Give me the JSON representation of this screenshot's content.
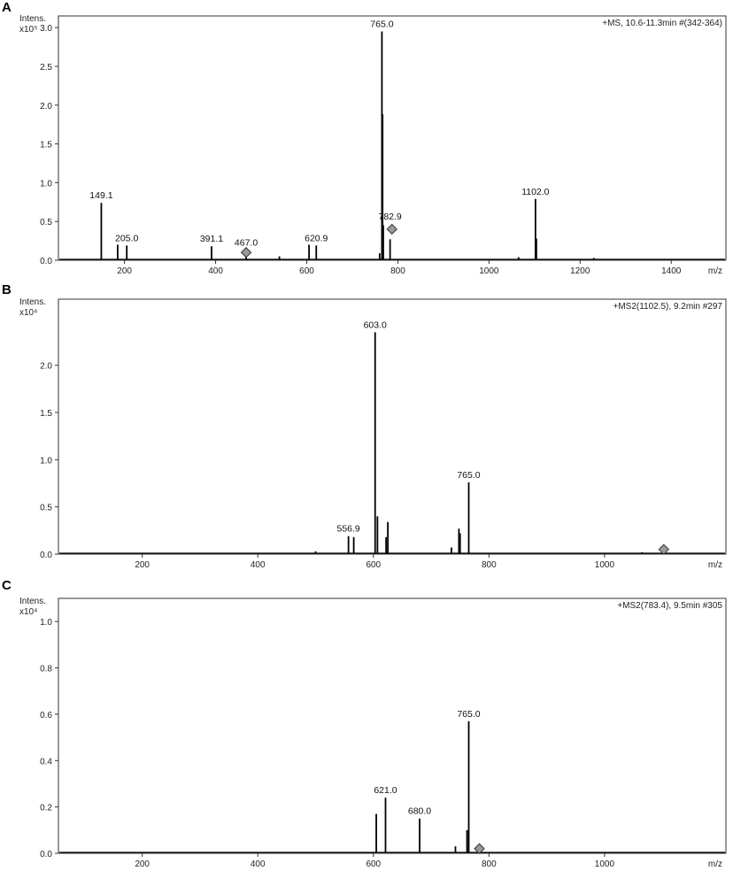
{
  "chart_data": [
    {
      "type": "bar",
      "panel": "A",
      "ylabel": "Intens.",
      "yunit": "x10⁵",
      "info": "+MS, 10.6-11.3min #(342-364)",
      "xlabel": "m/z",
      "xlim": [
        55,
        1520
      ],
      "ylim": [
        0,
        3.15
      ],
      "xticks": [
        200,
        400,
        600,
        800,
        1000,
        1200,
        1400
      ],
      "yticks": [
        0.0,
        0.5,
        1.0,
        1.5,
        2.0,
        2.5,
        3.0
      ],
      "ytick_labels": [
        "0.0",
        "0.5",
        "1.0",
        "1.5",
        "2.0",
        "2.5",
        "3.0"
      ],
      "peaks": [
        {
          "x": 149.1,
          "y": 0.74
        },
        {
          "x": 185.0,
          "y": 0.2
        },
        {
          "x": 205.0,
          "y": 0.19
        },
        {
          "x": 391.1,
          "y": 0.18
        },
        {
          "x": 467.0,
          "y": 0.05
        },
        {
          "x": 540.0,
          "y": 0.05
        },
        {
          "x": 605.0,
          "y": 0.2
        },
        {
          "x": 620.9,
          "y": 0.19
        },
        {
          "x": 760.0,
          "y": 0.09
        },
        {
          "x": 765.0,
          "y": 2.95
        },
        {
          "x": 766.5,
          "y": 1.88
        },
        {
          "x": 768.0,
          "y": 0.45
        },
        {
          "x": 782.9,
          "y": 0.27
        },
        {
          "x": 1065.0,
          "y": 0.04
        },
        {
          "x": 1102.0,
          "y": 0.79
        },
        {
          "x": 1104.0,
          "y": 0.28
        },
        {
          "x": 1230.0,
          "y": 0.03
        }
      ],
      "labels": [
        {
          "x": 149.1,
          "y": 0.74,
          "text": "149.1"
        },
        {
          "x": 205.0,
          "y": 0.19,
          "text": "205.0"
        },
        {
          "x": 391.1,
          "y": 0.18,
          "text": "391.1"
        },
        {
          "x": 467.0,
          "y": 0.13,
          "text": "467.0"
        },
        {
          "x": 620.9,
          "y": 0.19,
          "text": "620.9"
        },
        {
          "x": 765.0,
          "y": 2.95,
          "text": "765.0"
        },
        {
          "x": 782.9,
          "y": 0.47,
          "text": "782.9"
        },
        {
          "x": 1102.0,
          "y": 0.79,
          "text": "1102.0"
        }
      ],
      "precursors": [
        {
          "x": 467.0,
          "y": 0.1
        },
        {
          "x": 787.0,
          "y": 0.4
        }
      ]
    },
    {
      "type": "bar",
      "panel": "B",
      "ylabel": "Intens.",
      "yunit": "x10⁴",
      "info": "+MS2(1102.5), 9.2min #297",
      "xlabel": "m/z",
      "xlim": [
        55,
        1210
      ],
      "ylim": [
        0,
        2.7
      ],
      "xticks": [
        200,
        400,
        600,
        800,
        1000
      ],
      "yticks": [
        0.0,
        0.5,
        1.0,
        1.5,
        2.0
      ],
      "ytick_labels": [
        "0.0",
        "0.5",
        "1.0",
        "1.5",
        "2.0"
      ],
      "peaks": [
        {
          "x": 500.0,
          "y": 0.03
        },
        {
          "x": 556.9,
          "y": 0.19
        },
        {
          "x": 566.0,
          "y": 0.18
        },
        {
          "x": 603.0,
          "y": 2.35
        },
        {
          "x": 607.0,
          "y": 0.4
        },
        {
          "x": 622.0,
          "y": 0.18
        },
        {
          "x": 625.0,
          "y": 0.34
        },
        {
          "x": 735.0,
          "y": 0.07
        },
        {
          "x": 748.0,
          "y": 0.27
        },
        {
          "x": 750.0,
          "y": 0.22
        },
        {
          "x": 765.0,
          "y": 0.76
        },
        {
          "x": 1065.0,
          "y": 0.02
        }
      ],
      "labels": [
        {
          "x": 556.9,
          "y": 0.19,
          "text": "556.9"
        },
        {
          "x": 603.0,
          "y": 2.35,
          "text": "603.0"
        },
        {
          "x": 765.0,
          "y": 0.76,
          "text": "765.0"
        }
      ],
      "precursors": [
        {
          "x": 1102.5,
          "y": 0.05
        }
      ]
    },
    {
      "type": "bar",
      "panel": "C",
      "ylabel": "Intens.",
      "yunit": "x10⁴",
      "info": "+MS2(783.4), 9.5min #305",
      "xlabel": "m/z",
      "xlim": [
        55,
        1210
      ],
      "ylim": [
        0,
        1.1
      ],
      "xticks": [
        200,
        400,
        600,
        800,
        1000
      ],
      "yticks": [
        0.0,
        0.2,
        0.4,
        0.6,
        0.8,
        1.0
      ],
      "ytick_labels": [
        "0.0",
        "0.2",
        "0.4",
        "0.6",
        "0.8",
        "1.0"
      ],
      "peaks": [
        {
          "x": 605.0,
          "y": 0.17
        },
        {
          "x": 621.0,
          "y": 0.24
        },
        {
          "x": 680.0,
          "y": 0.15
        },
        {
          "x": 742.0,
          "y": 0.03
        },
        {
          "x": 762.0,
          "y": 0.1
        },
        {
          "x": 765.0,
          "y": 0.57
        }
      ],
      "labels": [
        {
          "x": 621.0,
          "y": 0.24,
          "text": "621.0"
        },
        {
          "x": 680.0,
          "y": 0.15,
          "text": "680.0"
        },
        {
          "x": 765.0,
          "y": 0.57,
          "text": "765.0"
        }
      ],
      "precursors": [
        {
          "x": 783.4,
          "y": 0.02
        }
      ]
    }
  ]
}
